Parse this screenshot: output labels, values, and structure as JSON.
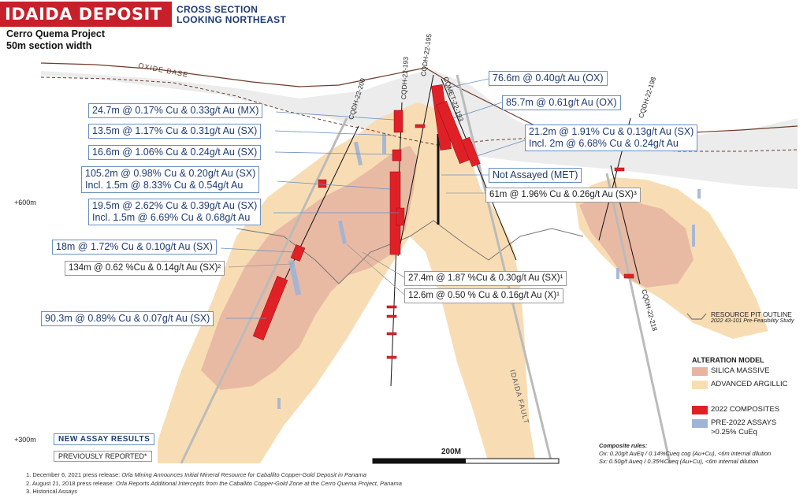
{
  "header": {
    "title": "IDAIDA DEPOSIT",
    "subtitle_line1": "CROSS SECTION",
    "subtitle_line2": "LOOKING NORTHEAST"
  },
  "project": {
    "line1": "Cerro Quema Project",
    "line2": "50m section width"
  },
  "labels": {
    "oxide_base": "OXIDE BASE",
    "fault": "IDAIDA FAULT",
    "scale": "200M",
    "elev_600": "+600m",
    "elev_300": "+300m"
  },
  "drillholes": [
    {
      "name": "CQDH-22-200"
    },
    {
      "name": "CQDH-22-193"
    },
    {
      "name": "CQDH-22-195"
    },
    {
      "name": "CQMET-22-193"
    },
    {
      "name": "CQDH-22-198"
    },
    {
      "name": "CQDH-22-218"
    }
  ],
  "intercepts_new": [
    "24.7m @ 0.17% Cu & 0.33g/t Au (MX)",
    "13.5m @ 1.17% Cu & 0.31g/t Au (SX)",
    "16.6m @ 1.06% Cu & 0.24g/t Au (SX)",
    "105.2m @ 0.98% Cu & 0.20g/t Au (SX)",
    "Incl. 1.5m @ 8.33% Cu & 0.54g/t Au",
    "19.5m @ 2.62% Cu & 0.39g/t Au (SX)",
    "Incl. 1.5m @ 6.69% Cu & 0.68g/t Au",
    "18m @ 1.72% Cu & 0.10g/t Au (SX)",
    "90.3m @ 0.89% Cu & 0.07g/t Au (SX)",
    "76.6m @ 0.40g/t Au (OX)",
    "85.7m @ 0.61g/t Au (OX)",
    "21.2m @ 1.91% Cu & 0.13g/t Au (SX)",
    "Incl. 2m @ 6.68% Cu & 0.24g/t Au",
    "Not Assayed (MET)"
  ],
  "intercepts_previous": [
    "134m @ 0.62 %Cu & 0.14g/t Au (SX)²",
    "61m @ 1.96% Cu & 0.26g/t Au (SX)³",
    "27.4m @ 1.87 %Cu & 0.30g/t Au (SX)¹",
    "12.6m @ 0.50 % Cu & 0.16g/t Au (X)¹"
  ],
  "legend": {
    "pit_outline": "RESOURCE PIT OUTLINE",
    "pit_study": "2022 43-101 Pre-Feasibility Study",
    "alteration_title": "ALTERATION MODEL",
    "silica": "SILICA MASSIVE",
    "argillic": "ADVANCED ARGILLIC",
    "composites_2022": "2022 COMPOSITES",
    "pre2022_line1": "PRE-2022 ASSAYS",
    "pre2022_line2": ">0.25% CuEq",
    "colors": {
      "silica": "#e6b4a0",
      "argillic": "#f8ddb4",
      "composite": "#e02027",
      "pre2022": "#9fb4d6"
    }
  },
  "boxes": {
    "new_assay": "NEW ASSAY RESULTS",
    "previously": "PREVIOUSLY REPORTED*"
  },
  "composite_rules": {
    "title": "Composite rules:",
    "ox": "Ox: 0.20g/t AuEq / 0.14%Cueq cog (Au+Cu), <6m internal dilution",
    "sx": "Sx: 0.50g/t Aueq / 0.35%Cueq (Au+Cu), <6m internal dilution"
  },
  "footnotes": {
    "f1_prefix": "1. December 6, 2021 press release: ",
    "f1_text": "Orla Mining Announces Initial Mineral Resource for Caballito Copper-Gold Deposit in Panama",
    "f2_prefix": "2. August 21, 2018 press release: ",
    "f2_text": "Orla Reports Additional Intercepts from the Caballito Copper-Gold Zone at the Cerro Quema Project, Panama",
    "f3": "3. Historical Assays"
  }
}
